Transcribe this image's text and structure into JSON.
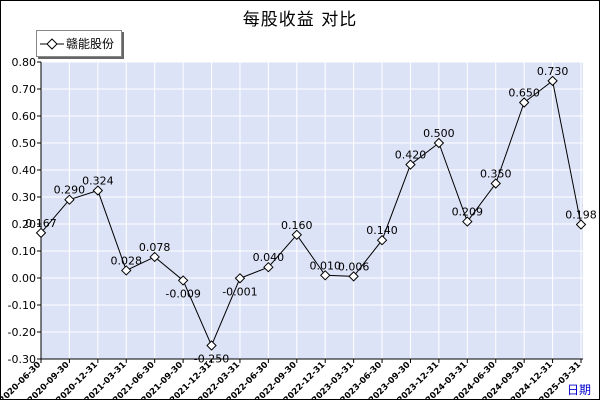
{
  "chart_data": {
    "type": "line",
    "title": "每股收益  对比",
    "x": [
      "2020-06-30",
      "2020-09-30",
      "2020-12-31",
      "2021-03-31",
      "2021-06-30",
      "2021-09-30",
      "2021-12-31",
      "2022-03-31",
      "2022-06-30",
      "2022-09-30",
      "2022-12-31",
      "2023-03-31",
      "2023-06-30",
      "2023-09-30",
      "2023-12-31",
      "2024-03-31",
      "2024-06-30",
      "2024-09-30",
      "2024-12-31",
      "2025-03-31"
    ],
    "series": [
      {
        "name": "赣能股份",
        "values": [
          0.167,
          0.29,
          0.324,
          0.028,
          0.078,
          -0.009,
          -0.25,
          -0.001,
          0.04,
          0.16,
          0.01,
          0.006,
          0.14,
          0.42,
          0.5,
          0.209,
          0.35,
          0.65,
          0.73,
          0.198
        ]
      }
    ],
    "data_labels": [
      "0.167",
      "0.290",
      "0.324",
      "0.028",
      "0.078",
      "-0.009",
      "-0.250",
      "-0.001",
      "0.040",
      "0.160",
      "0.010",
      "0.006",
      "0.140",
      "0.420",
      "0.500",
      "0.209",
      "0.350",
      "0.650",
      "0.730",
      "0.198"
    ],
    "ylim": [
      -0.3,
      0.8
    ],
    "yticks": [
      "-0.30",
      "-0.20",
      "-0.10",
      "0.00",
      "0.10",
      "0.20",
      "0.30",
      "0.40",
      "0.50",
      "0.60",
      "0.70",
      "0.80"
    ],
    "grid": true,
    "legend": "top-left",
    "xlabel": "",
    "ylabel": "",
    "axis_suffix": "日期",
    "colors": {
      "plot_bg": "#dde3f7",
      "grid": "#ffffff",
      "line": "#000000",
      "axis_suffix": "#0000cc"
    }
  }
}
